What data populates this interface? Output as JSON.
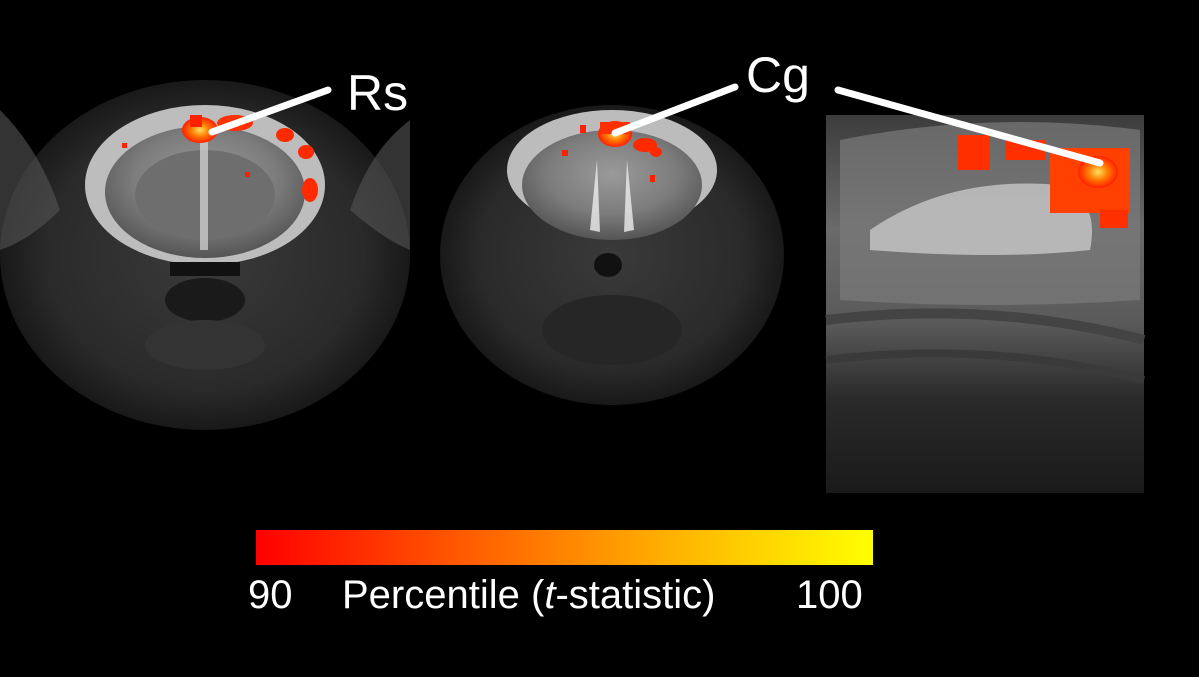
{
  "labels": {
    "rs": "Rs",
    "cg": "Cg"
  },
  "colorbar": {
    "min_label": "90",
    "max_label": "100",
    "title_prefix": "Percentile (",
    "title_italic": "t",
    "title_suffix": "-statistic)",
    "colors": [
      "#ff0000",
      "#ff5a00",
      "#ffb000",
      "#ffff00"
    ]
  }
}
